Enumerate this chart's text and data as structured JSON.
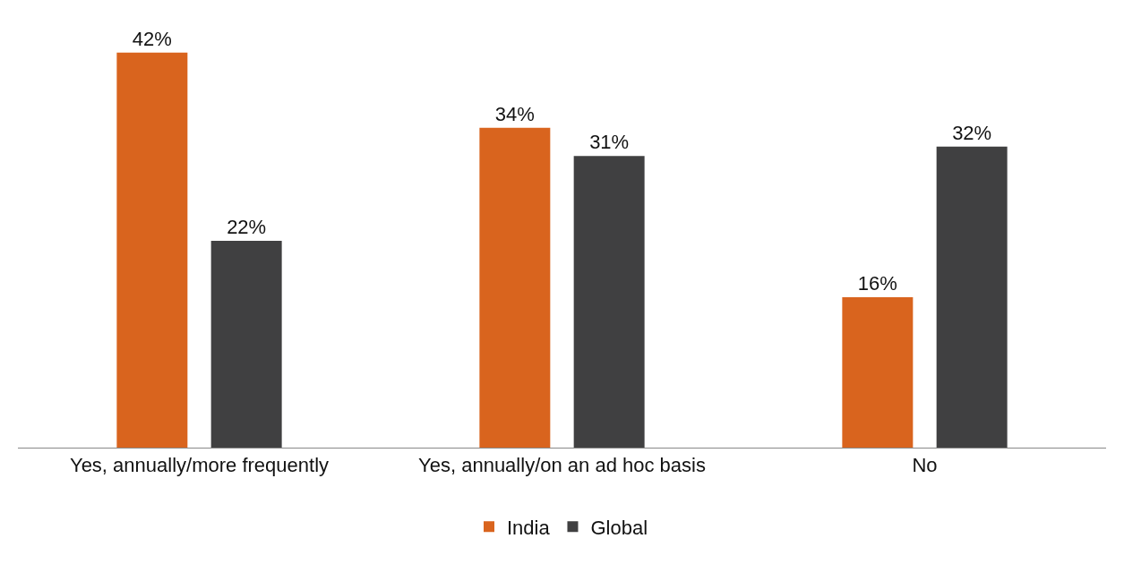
{
  "chart_data": {
    "type": "bar",
    "categories": [
      "Yes, annually/more frequently",
      "Yes, annually/on an ad hoc basis",
      "No"
    ],
    "series": [
      {
        "name": "India",
        "color": "#d9641e",
        "values": [
          42,
          34,
          16
        ],
        "value_labels": [
          "42%",
          "34%",
          "16%"
        ]
      },
      {
        "name": "Global",
        "color": "#404041",
        "values": [
          22,
          31,
          32
        ],
        "value_labels": [
          "22%",
          "31%",
          "32%"
        ]
      }
    ],
    "legend": "bottom"
  }
}
